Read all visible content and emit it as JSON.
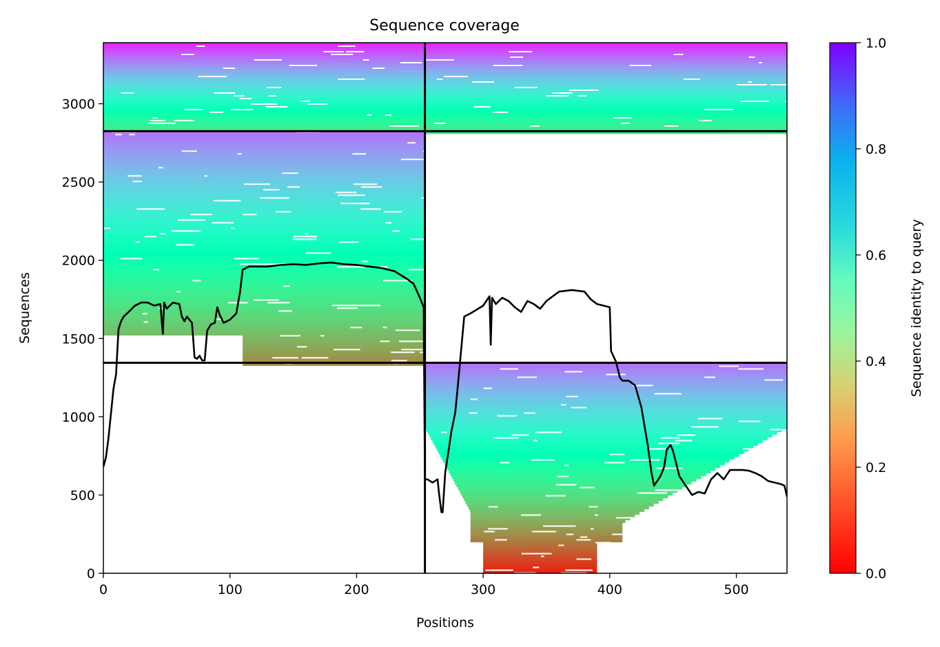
{
  "chart_data": {
    "type": "heatmap",
    "title": "Sequence coverage",
    "xlabel": "Positions",
    "ylabel": "Sequences",
    "xlim": [
      0,
      540
    ],
    "ylim": [
      0,
      3390
    ],
    "xticks": [
      0,
      100,
      200,
      300,
      400,
      500
    ],
    "yticks": [
      0,
      500,
      1000,
      1500,
      2000,
      2500,
      3000
    ],
    "chain_boundary_x": 254,
    "group_boundaries_y": [
      1345,
      2825
    ],
    "colorbar": {
      "label": "Sequence identity to query",
      "min": 0.0,
      "max": 1.0,
      "ticks": [
        0.0,
        0.2,
        0.4,
        0.6,
        0.8,
        1.0
      ],
      "colormap": "rainbow_r"
    },
    "blocks": [
      {
        "x": [
          0,
          254
        ],
        "y": [
          2825,
          3390
        ],
        "identity_range": [
          0.35,
          0.95
        ]
      },
      {
        "x": [
          254,
          540
        ],
        "y": [
          2825,
          3390
        ],
        "identity_range": [
          0.35,
          0.95
        ]
      },
      {
        "x": [
          0,
          254
        ],
        "y": [
          1345,
          2825
        ],
        "identity_range": [
          0.18,
          0.85
        ]
      },
      {
        "x": [
          254,
          540
        ],
        "y": [
          0,
          1345
        ],
        "identity_range": [
          0.03,
          0.85
        ]
      }
    ],
    "coverage_line": {
      "x": [
        0,
        2,
        4,
        6,
        8,
        10,
        12,
        14,
        16,
        20,
        25,
        30,
        35,
        40,
        45,
        47,
        48,
        50,
        55,
        60,
        62,
        64,
        66,
        70,
        72,
        74,
        76,
        78,
        80,
        82,
        85,
        88,
        90,
        92,
        95,
        100,
        105,
        108,
        110,
        115,
        120,
        130,
        140,
        150,
        160,
        170,
        180,
        190,
        200,
        210,
        220,
        230,
        240,
        245,
        250,
        253,
        254,
        256,
        260,
        264,
        265,
        267,
        268,
        270,
        275,
        278,
        280,
        285,
        290,
        300,
        305,
        306,
        307,
        310,
        315,
        320,
        325,
        330,
        335,
        340,
        345,
        350,
        360,
        370,
        380,
        385,
        390,
        400,
        401,
        405,
        408,
        410,
        415,
        420,
        425,
        430,
        433,
        435,
        440,
        443,
        445,
        448,
        450,
        455,
        460,
        465,
        470,
        475,
        480,
        485,
        490,
        495,
        500,
        505,
        510,
        515,
        520,
        525,
        530,
        535,
        538,
        540
      ],
      "y": [
        680,
        740,
        860,
        1020,
        1180,
        1270,
        1560,
        1610,
        1640,
        1670,
        1710,
        1730,
        1730,
        1710,
        1720,
        1530,
        1730,
        1690,
        1730,
        1720,
        1640,
        1610,
        1640,
        1600,
        1380,
        1370,
        1390,
        1360,
        1360,
        1550,
        1590,
        1600,
        1700,
        1650,
        1600,
        1620,
        1660,
        1800,
        1940,
        1960,
        1960,
        1960,
        1970,
        1975,
        1970,
        1980,
        1985,
        1975,
        1970,
        1960,
        1950,
        1930,
        1880,
        1850,
        1760,
        1700,
        600,
        600,
        580,
        600,
        520,
        390,
        390,
        640,
        910,
        1030,
        1200,
        1640,
        1660,
        1710,
        1770,
        1460,
        1760,
        1720,
        1760,
        1740,
        1700,
        1670,
        1740,
        1720,
        1690,
        1740,
        1800,
        1810,
        1800,
        1750,
        1720,
        1700,
        1420,
        1350,
        1250,
        1230,
        1230,
        1200,
        1060,
        820,
        640,
        560,
        620,
        680,
        790,
        820,
        780,
        620,
        560,
        500,
        520,
        510,
        600,
        640,
        600,
        660,
        660,
        660,
        655,
        640,
        620,
        590,
        580,
        570,
        560,
        490
      ]
    }
  }
}
